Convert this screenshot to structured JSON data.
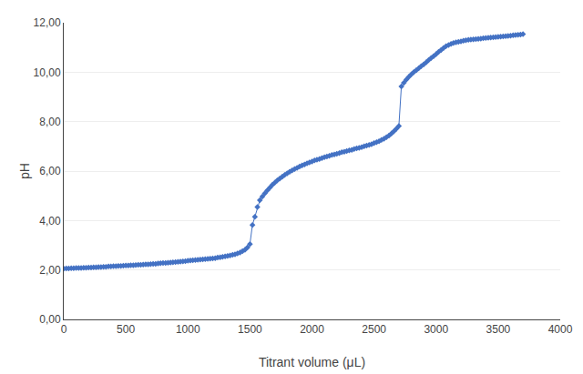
{
  "chart_data": {
    "type": "line",
    "xlabel": "Titrant volume (μL)",
    "ylabel": "pH",
    "xlim": [
      0,
      4000
    ],
    "ylim": [
      0,
      12.0
    ],
    "xticks": [
      0,
      500,
      1000,
      1500,
      2000,
      2500,
      3000,
      3500,
      4000
    ],
    "yticks": [
      {
        "value": 0.0,
        "label": "0,00"
      },
      {
        "value": 2.0,
        "label": "2,00"
      },
      {
        "value": 4.0,
        "label": "4,00"
      },
      {
        "value": 6.0,
        "label": "6,00"
      },
      {
        "value": 8.0,
        "label": "8,00"
      },
      {
        "value": 10.0,
        "label": "10,00"
      },
      {
        "value": 12.0,
        "label": "12,00"
      }
    ],
    "grid": "y",
    "color": "#4472C4",
    "marker": "diamond",
    "line_style": "solid",
    "x": [
      0,
      20,
      40,
      60,
      80,
      100,
      120,
      140,
      160,
      180,
      200,
      220,
      240,
      260,
      280,
      300,
      320,
      340,
      360,
      380,
      400,
      420,
      440,
      460,
      480,
      500,
      520,
      540,
      560,
      580,
      600,
      620,
      640,
      660,
      680,
      700,
      720,
      740,
      760,
      780,
      800,
      820,
      840,
      860,
      880,
      900,
      920,
      940,
      960,
      980,
      1000,
      1020,
      1040,
      1060,
      1080,
      1100,
      1120,
      1140,
      1160,
      1180,
      1200,
      1220,
      1240,
      1260,
      1280,
      1300,
      1320,
      1340,
      1360,
      1380,
      1400,
      1420,
      1440,
      1460,
      1480,
      1500,
      1520,
      1540,
      1560,
      1580,
      1600,
      1620,
      1640,
      1660,
      1680,
      1700,
      1720,
      1740,
      1760,
      1780,
      1800,
      1820,
      1840,
      1860,
      1880,
      1900,
      1920,
      1940,
      1960,
      1980,
      2000,
      2020,
      2040,
      2060,
      2080,
      2100,
      2120,
      2140,
      2160,
      2180,
      2200,
      2220,
      2240,
      2260,
      2280,
      2300,
      2320,
      2340,
      2360,
      2380,
      2400,
      2420,
      2440,
      2460,
      2480,
      2500,
      2520,
      2540,
      2560,
      2580,
      2600,
      2620,
      2640,
      2660,
      2680,
      2700,
      2720,
      2740,
      2760,
      2780,
      2800,
      2820,
      2840,
      2860,
      2880,
      2900,
      2920,
      2940,
      2960,
      2980,
      3000,
      3020,
      3040,
      3060,
      3080,
      3100,
      3120,
      3140,
      3160,
      3180,
      3200,
      3220,
      3240,
      3260,
      3280,
      3300,
      3320,
      3340,
      3360,
      3380,
      3400,
      3420,
      3440,
      3460,
      3480,
      3500,
      3520,
      3540,
      3560,
      3580,
      3600,
      3620,
      3640,
      3660,
      3680,
      3700
    ],
    "values": [
      2.05,
      2.06,
      2.06,
      2.07,
      2.07,
      2.08,
      2.08,
      2.08,
      2.09,
      2.09,
      2.1,
      2.1,
      2.11,
      2.11,
      2.12,
      2.12,
      2.13,
      2.13,
      2.14,
      2.14,
      2.15,
      2.15,
      2.16,
      2.16,
      2.17,
      2.18,
      2.18,
      2.19,
      2.19,
      2.2,
      2.21,
      2.21,
      2.22,
      2.23,
      2.23,
      2.24,
      2.25,
      2.25,
      2.26,
      2.27,
      2.28,
      2.28,
      2.29,
      2.3,
      2.31,
      2.32,
      2.33,
      2.34,
      2.35,
      2.36,
      2.37,
      2.38,
      2.39,
      2.4,
      2.41,
      2.42,
      2.43,
      2.44,
      2.45,
      2.46,
      2.47,
      2.48,
      2.5,
      2.51,
      2.53,
      2.55,
      2.57,
      2.59,
      2.61,
      2.63,
      2.67,
      2.71,
      2.76,
      2.82,
      2.91,
      3.05,
      3.82,
      4.15,
      4.55,
      4.82,
      4.97,
      5.1,
      5.22,
      5.33,
      5.44,
      5.53,
      5.62,
      5.7,
      5.77,
      5.84,
      5.91,
      5.97,
      6.03,
      6.08,
      6.13,
      6.18,
      6.23,
      6.27,
      6.31,
      6.35,
      6.39,
      6.43,
      6.46,
      6.49,
      6.52,
      6.56,
      6.59,
      6.62,
      6.65,
      6.67,
      6.7,
      6.73,
      6.76,
      6.78,
      6.81,
      6.84,
      6.86,
      6.89,
      6.92,
      6.94,
      6.97,
      7.0,
      7.03,
      7.06,
      7.09,
      7.13,
      7.17,
      7.21,
      7.26,
      7.31,
      7.37,
      7.44,
      7.52,
      7.61,
      7.71,
      7.82,
      9.42,
      9.57,
      9.7,
      9.81,
      9.91,
      10.0,
      10.08,
      10.16,
      10.24,
      10.32,
      10.4,
      10.49,
      10.57,
      10.65,
      10.73,
      10.82,
      10.9,
      10.98,
      11.05,
      11.1,
      11.14,
      11.18,
      11.21,
      11.23,
      11.25,
      11.27,
      11.29,
      11.31,
      11.32,
      11.33,
      11.34,
      11.35,
      11.36,
      11.37,
      11.38,
      11.39,
      11.4,
      11.41,
      11.42,
      11.43,
      11.44,
      11.45,
      11.46,
      11.47,
      11.48,
      11.49,
      11.5,
      11.51,
      11.52,
      11.54
    ]
  }
}
